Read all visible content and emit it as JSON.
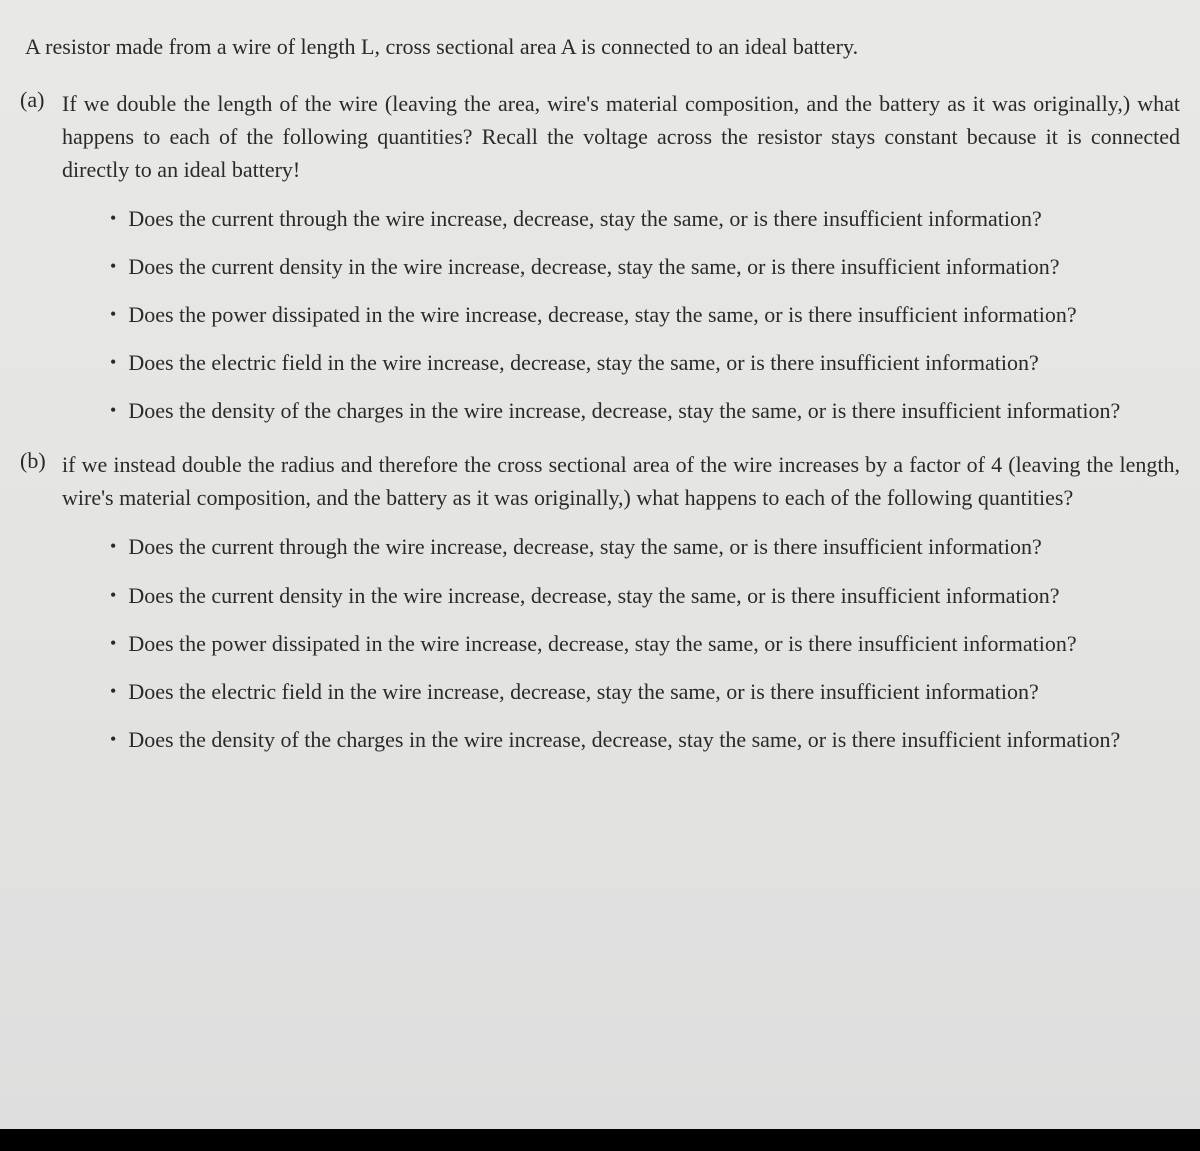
{
  "intro": "A resistor made from a wire of length L, cross sectional area A is connected to an ideal battery.",
  "parts": [
    {
      "label": "(a)",
      "text": "If we double the length of the wire (leaving the area, wire's material composition, and the battery as it was originally,) what happens to each of the following quantities? Recall the voltage across the resistor stays constant because it is connected directly to an ideal battery!",
      "bullets": [
        "Does the current through the wire increase, decrease, stay the same, or is there insufficient information?",
        "Does the current density in the wire increase, decrease, stay the same, or is there insufficient information?",
        "Does the power dissipated in the wire increase, decrease, stay the same, or is there insufficient information?",
        "Does the electric field in the wire increase, decrease, stay the same, or is there insufficient information?",
        "Does the density of the charges in the wire increase, decrease, stay the same, or is there insufficient information?"
      ]
    },
    {
      "label": "(b)",
      "text": "if we instead double the radius and therefore the cross sectional area of the wire increases by a factor of 4 (leaving the length, wire's material composition, and the battery as it was originally,) what happens to each of the following quantities?",
      "bullets": [
        "Does the current through the wire increase, decrease, stay the same, or is there insufficient information?",
        "Does the current density in the wire increase, decrease, stay the same, or is there insufficient information?",
        "Does the power dissipated in the wire increase, decrease, stay the same, or is there insufficient information?",
        "Does the electric field in the wire increase, decrease, stay the same, or is there insufficient information?",
        "Does the density of the charges in the wire increase, decrease, stay the same, or is there insufficient information?"
      ]
    }
  ],
  "style": {
    "background_gradient": [
      "#e8e8e6",
      "#e4e4e2",
      "#dedede"
    ],
    "text_color": "#2a2a2a",
    "font_family": "Computer Modern serif",
    "intro_fontsize": 22,
    "body_fontsize": 22,
    "bullet_marker": "•",
    "bottom_bar_color": "#000000",
    "bottom_bar_height": 22
  }
}
